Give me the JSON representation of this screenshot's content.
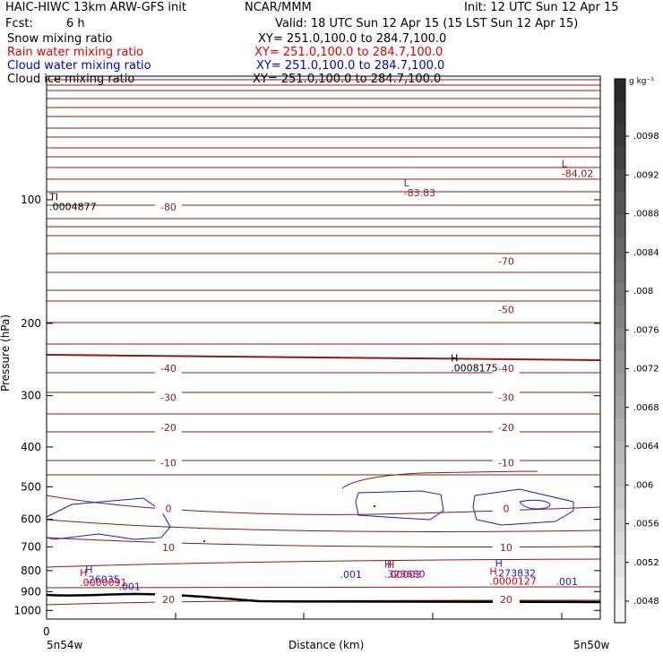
{
  "header": {
    "model": "HAIC-HIWC 13km ARW-GFS init",
    "org": "NCAR/MMM",
    "init": "Init: 12 UTC Sun 12 Apr 15",
    "fcst_label": "Fcst:",
    "fcst_value": "6 h",
    "valid": "Valid: 18 UTC Sun 12 Apr 15 (15 LST Sun 12 Apr 15)"
  },
  "fields": [
    {
      "name": "Snow mixing ratio",
      "xy": "XY= 251.0,100.0 to 284.7,100.0",
      "color": "#000000"
    },
    {
      "name": "Rain water mixing ratio",
      "xy": "XY= 251.0,100.0 to 284.7,100.0",
      "color": "#e00000"
    },
    {
      "name": "Cloud water mixing ratio",
      "xy": "XY= 251.0,100.0 to 284.7,100.0",
      "color": "#0000d0"
    },
    {
      "name": "Cloud ice mixing ratio",
      "xy": "XY= 251.0,100.0 to 284.7,100.0",
      "color": "#000000"
    }
  ],
  "colors": {
    "temperature_contour": "#8b1a1a",
    "cloud_water_contour": "#1a1acd",
    "rain_label": "#e00000",
    "terrain": "#000000"
  },
  "chart_data": {
    "type": "contour-cross-section",
    "ylabel": "Pressure (hPa)",
    "xlabel": "Distance (km)",
    "x_start_label": "5n54w",
    "x_end_label": "5n50w",
    "x_first_tick": "0",
    "y_axis": {
      "type": "log",
      "range": [
        1050,
        50
      ],
      "ticks": [
        100,
        200,
        300,
        400,
        500,
        600,
        700,
        800,
        900,
        1000
      ]
    },
    "colorbar": {
      "units": "g kg⁻¹",
      "labels": [
        ".0098",
        ".0092",
        ".0088",
        ".0084",
        ".008",
        ".0076",
        ".0072",
        ".0068",
        ".0064",
        ".006",
        ".0056",
        ".0052",
        ".0048"
      ]
    },
    "temperature_contours": [
      {
        "value": "-80",
        "pressure": 104
      },
      {
        "value": "-70",
        "pressure": 141
      },
      {
        "value": "-50",
        "pressure": 185
      },
      {
        "value": "-40",
        "pressure": 257
      },
      {
        "value": "-30",
        "pressure": 303
      },
      {
        "value": "-20",
        "pressure": 358
      },
      {
        "value": "-10",
        "pressure": 437
      },
      {
        "value": "0",
        "pressure": 564,
        "bold": true
      },
      {
        "value": "10",
        "pressure": 702
      },
      {
        "value": "20",
        "pressure": 941
      }
    ],
    "markers": [
      {
        "symbol": "L",
        "value": "-83.83",
        "color": "temperature",
        "x_frac": 0.645,
        "pressure": 98
      },
      {
        "symbol": "L",
        "value": "-84.02",
        "color": "temperature",
        "x_frac": 0.93,
        "pressure": 88
      },
      {
        "symbol": "TI",
        "value": ".0004877",
        "color": "black",
        "x_frac": 0.005,
        "pressure": 106
      },
      {
        "symbol": "H",
        "value": ".0008175",
        "color": "black",
        "x_frac": 0.73,
        "pressure": 262
      },
      {
        "symbol": "H",
        "value": ".26035",
        "color": "cloud",
        "x_frac": 0.07,
        "pressure": 856
      },
      {
        "symbol": "H",
        "value": ".0000091",
        "color": "rain",
        "x_frac": 0.06,
        "pressure": 871
      },
      {
        "symbol": "H",
        "value": ".273832",
        "color": "cloud",
        "x_frac": 0.81,
        "pressure": 828
      },
      {
        "symbol": "H",
        "value": ".0000127",
        "color": "rain",
        "x_frac": 0.8,
        "pressure": 866
      },
      {
        "symbol": "H",
        "value": ".323680",
        "color": "cloud",
        "x_frac": 0.61,
        "pressure": 832
      },
      {
        "symbol": "H",
        "value": ".00003",
        "color": "rain",
        "x_frac": 0.615,
        "pressure": 834
      }
    ],
    "cloud_contour_labels": [
      {
        "value": ".001",
        "x_frac": 0.13,
        "pressure": 891
      },
      {
        "value": ".001",
        "x_frac": 0.53,
        "pressure": 834
      },
      {
        "value": ".001",
        "x_frac": 0.92,
        "pressure": 868
      }
    ]
  }
}
